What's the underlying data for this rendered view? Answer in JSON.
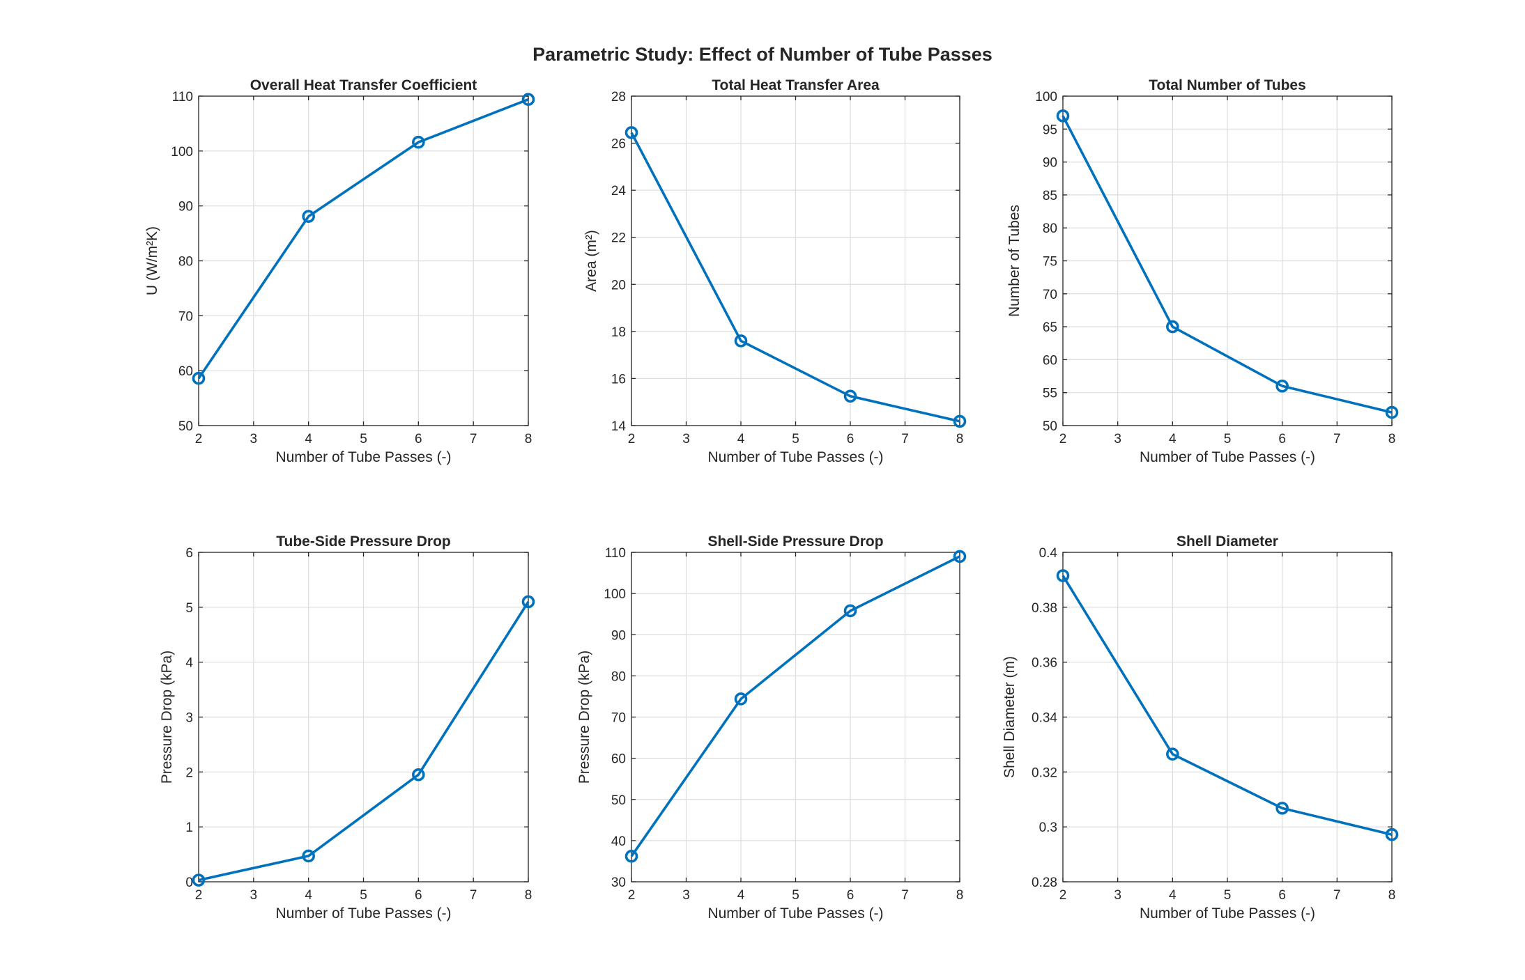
{
  "figure_title": "Parametric Study: Effect of Number of Tube Passes",
  "colors": {
    "series": "#0072BD",
    "grid": "#dcdcdc",
    "axis": "#262626"
  },
  "chart_data": [
    {
      "type": "line",
      "title": "Overall Heat Transfer Coefficient",
      "xlabel": "Number of Tube Passes (-)",
      "ylabel": "U (W/m²K)",
      "x": [
        2,
        4,
        6,
        8
      ],
      "y": [
        58.6,
        88.1,
        101.6,
        109.4
      ],
      "xlim": [
        2,
        8
      ],
      "ylim": [
        50,
        110
      ],
      "xticks": [
        "2",
        "3",
        "4",
        "5",
        "6",
        "7",
        "8"
      ],
      "yticks": [
        "50",
        "60",
        "70",
        "80",
        "90",
        "100",
        "110"
      ],
      "marker": "circle",
      "grid": true
    },
    {
      "type": "line",
      "title": "Total Heat Transfer Area",
      "xlabel": "Number of Tube Passes (-)",
      "ylabel": "Area (m²)",
      "x": [
        2,
        4,
        6,
        8
      ],
      "y": [
        26.45,
        17.6,
        15.25,
        14.18
      ],
      "xlim": [
        2,
        8
      ],
      "ylim": [
        14,
        28
      ],
      "xticks": [
        "2",
        "3",
        "4",
        "5",
        "6",
        "7",
        "8"
      ],
      "yticks": [
        "14",
        "16",
        "18",
        "20",
        "22",
        "24",
        "26",
        "28"
      ],
      "marker": "circle",
      "grid": true
    },
    {
      "type": "line",
      "title": "Total Number of Tubes",
      "xlabel": "Number of Tube Passes (-)",
      "ylabel": "Number of Tubes",
      "x": [
        2,
        4,
        6,
        8
      ],
      "y": [
        97,
        65,
        56,
        52
      ],
      "xlim": [
        2,
        8
      ],
      "ylim": [
        50,
        100
      ],
      "xticks": [
        "2",
        "3",
        "4",
        "5",
        "6",
        "7",
        "8"
      ],
      "yticks": [
        "50",
        "55",
        "60",
        "65",
        "70",
        "75",
        "80",
        "85",
        "90",
        "95",
        "100"
      ],
      "marker": "circle",
      "grid": true
    },
    {
      "type": "line",
      "title": "Tube-Side Pressure Drop",
      "xlabel": "Number of Tube Passes (-)",
      "ylabel": "Pressure Drop (kPa)",
      "x": [
        2,
        4,
        6,
        8
      ],
      "y": [
        0.03,
        0.47,
        1.95,
        5.1
      ],
      "xlim": [
        2,
        8
      ],
      "ylim": [
        0,
        6
      ],
      "xticks": [
        "2",
        "3",
        "4",
        "5",
        "6",
        "7",
        "8"
      ],
      "yticks": [
        "0",
        "1",
        "2",
        "3",
        "4",
        "5",
        "6"
      ],
      "marker": "circle",
      "grid": true
    },
    {
      "type": "line",
      "title": "Shell-Side Pressure Drop",
      "xlabel": "Number of Tube Passes (-)",
      "ylabel": "Pressure Drop (kPa)",
      "x": [
        2,
        4,
        6,
        8
      ],
      "y": [
        36.2,
        74.4,
        95.8,
        109
      ],
      "xlim": [
        2,
        8
      ],
      "ylim": [
        30,
        110
      ],
      "xticks": [
        "2",
        "3",
        "4",
        "5",
        "6",
        "7",
        "8"
      ],
      "yticks": [
        "30",
        "40",
        "50",
        "60",
        "70",
        "80",
        "90",
        "100",
        "110"
      ],
      "marker": "circle",
      "grid": true
    },
    {
      "type": "line",
      "title": "Shell Diameter",
      "xlabel": "Number of Tube Passes (-)",
      "ylabel": "Shell Diameter (m)",
      "x": [
        2,
        4,
        6,
        8
      ],
      "y": [
        0.3915,
        0.3265,
        0.3068,
        0.2972
      ],
      "xlim": [
        2,
        8
      ],
      "ylim": [
        0.28,
        0.4
      ],
      "xticks": [
        "2",
        "3",
        "4",
        "5",
        "6",
        "7",
        "8"
      ],
      "yticks": [
        "0.28",
        "0.3",
        "0.32",
        "0.34",
        "0.36",
        "0.38",
        "0.4"
      ],
      "marker": "circle",
      "grid": true
    }
  ]
}
